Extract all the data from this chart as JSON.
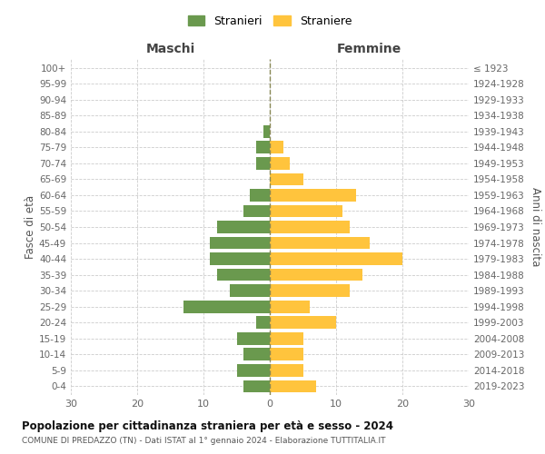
{
  "age_groups": [
    "0-4",
    "5-9",
    "10-14",
    "15-19",
    "20-24",
    "25-29",
    "30-34",
    "35-39",
    "40-44",
    "45-49",
    "50-54",
    "55-59",
    "60-64",
    "65-69",
    "70-74",
    "75-79",
    "80-84",
    "85-89",
    "90-94",
    "95-99",
    "100+"
  ],
  "birth_years": [
    "2019-2023",
    "2014-2018",
    "2009-2013",
    "2004-2008",
    "1999-2003",
    "1994-1998",
    "1989-1993",
    "1984-1988",
    "1979-1983",
    "1974-1978",
    "1969-1973",
    "1964-1968",
    "1959-1963",
    "1954-1958",
    "1949-1953",
    "1944-1948",
    "1939-1943",
    "1934-1938",
    "1929-1933",
    "1924-1928",
    "≤ 1923"
  ],
  "males": [
    4,
    5,
    4,
    5,
    2,
    13,
    6,
    8,
    9,
    9,
    8,
    4,
    3,
    0,
    2,
    2,
    1,
    0,
    0,
    0,
    0
  ],
  "females": [
    7,
    5,
    5,
    5,
    10,
    6,
    12,
    14,
    20,
    15,
    12,
    11,
    13,
    5,
    3,
    2,
    0,
    0,
    0,
    0,
    0
  ],
  "male_color": "#6a994e",
  "female_color": "#ffc43d",
  "background_color": "#ffffff",
  "grid_color": "#cccccc",
  "title": "Popolazione per cittadinanza straniera per età e sesso - 2024",
  "subtitle": "COMUNE DI PREDAZZO (TN) - Dati ISTAT al 1° gennaio 2024 - Elaborazione TUTTITALIA.IT",
  "xlabel_left": "Maschi",
  "xlabel_right": "Femmine",
  "ylabel_left": "Fasce di età",
  "ylabel_right": "Anni di nascita",
  "xlim": 30,
  "xticks": [
    -30,
    -20,
    -10,
    0,
    10,
    20,
    30
  ],
  "xticklabels": [
    "30",
    "20",
    "10",
    "0",
    "10",
    "20",
    "30"
  ],
  "legend_stranieri": "Stranieri",
  "legend_straniere": "Straniere"
}
